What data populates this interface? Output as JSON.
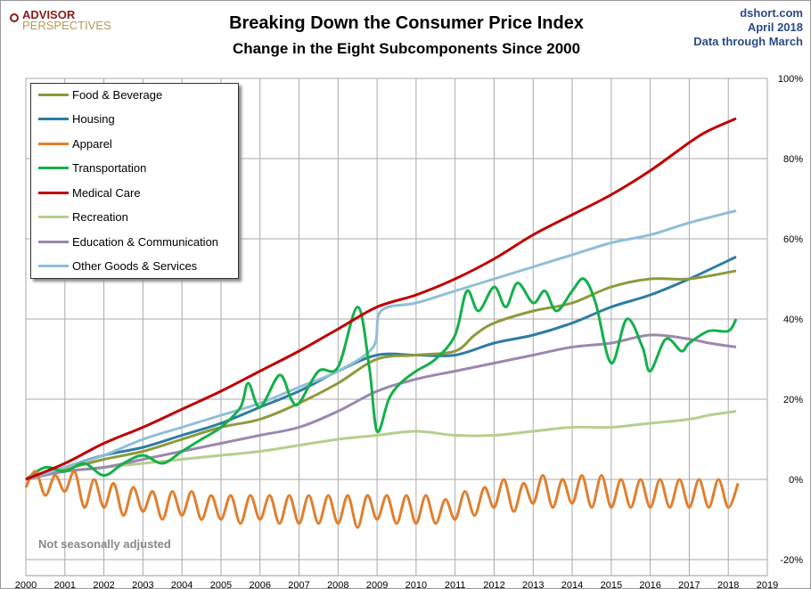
{
  "header": {
    "logo_line1": "ADVISOR",
    "logo_line2": "PERSPECTIVES",
    "title": "Breaking Down the Consumer Price Index",
    "subtitle": "Change in the Eight Subcomponents  Since 2000",
    "source": "dshort.com",
    "date": "April 2018",
    "data_through": "Data through March"
  },
  "note": "Not seasonally adjusted",
  "chart_data": {
    "type": "line",
    "title": "Breaking Down the Consumer Price Index",
    "subtitle": "Change in the Eight Subcomponents  Since 2000",
    "xlim": [
      2000,
      2019
    ],
    "ylim": [
      -24,
      100
    ],
    "grid": true,
    "legend_position": "top-left",
    "y_axis_side": "right",
    "x_ticks": [
      "2000",
      "2001",
      "2002",
      "2003",
      "2004",
      "2005",
      "2006",
      "2007",
      "2008",
      "2009",
      "2010",
      "2011",
      "2012",
      "2013",
      "2014",
      "2015",
      "2016",
      "2017",
      "2018",
      "2019"
    ],
    "y_ticks": [
      {
        "v": 100,
        "label": "100%"
      },
      {
        "v": 80,
        "label": "80%"
      },
      {
        "v": 60,
        "label": "60%"
      },
      {
        "v": 40,
        "label": "40%"
      },
      {
        "v": 20,
        "label": "20%"
      },
      {
        "v": 0,
        "label": "0%"
      },
      {
        "v": -20,
        "label": "-20%"
      }
    ],
    "series": [
      {
        "name": "Food & Beverage",
        "color": "#8c9a3a",
        "points": [
          [
            2000,
            0
          ],
          [
            2001,
            2.5
          ],
          [
            2002,
            5
          ],
          [
            2003,
            7
          ],
          [
            2004,
            10
          ],
          [
            2005,
            13
          ],
          [
            2006,
            15
          ],
          [
            2007,
            19
          ],
          [
            2008,
            24
          ],
          [
            2009,
            30
          ],
          [
            2010,
            31
          ],
          [
            2011,
            32
          ],
          [
            2011.5,
            36
          ],
          [
            2012,
            39
          ],
          [
            2013,
            42
          ],
          [
            2014,
            44
          ],
          [
            2015,
            48
          ],
          [
            2016,
            50
          ],
          [
            2017,
            50
          ],
          [
            2018.2,
            52
          ]
        ]
      },
      {
        "name": "Housing",
        "color": "#2e7ca3",
        "points": [
          [
            2000,
            0
          ],
          [
            2001,
            3
          ],
          [
            2002,
            6
          ],
          [
            2003,
            8
          ],
          [
            2004,
            11
          ],
          [
            2005,
            14
          ],
          [
            2006,
            18
          ],
          [
            2007,
            22
          ],
          [
            2008,
            27
          ],
          [
            2009,
            31
          ],
          [
            2010,
            31
          ],
          [
            2011,
            31
          ],
          [
            2012,
            34
          ],
          [
            2013,
            36
          ],
          [
            2014,
            39
          ],
          [
            2015,
            43
          ],
          [
            2016,
            46
          ],
          [
            2017,
            50
          ],
          [
            2018.2,
            55.5
          ]
        ]
      },
      {
        "name": "Apparel",
        "color": "#e07f2e",
        "quarterly_start": 2000,
        "values": [
          -2,
          2,
          -4,
          1,
          -3,
          2,
          -7,
          0,
          -7,
          -1,
          -9,
          -2,
          -8,
          -3,
          -10,
          -3,
          -9,
          -3,
          -10,
          -4,
          -10,
          -4,
          -11,
          -4,
          -10,
          -4,
          -11,
          -4,
          -11,
          -4,
          -11,
          -4,
          -11,
          -4,
          -12,
          -4,
          -10,
          -4,
          -11,
          -4,
          -11,
          -4,
          -11,
          -5,
          -10,
          -3,
          -9,
          -2,
          -7,
          0,
          -8,
          -1,
          -6,
          1,
          -7,
          0,
          -6,
          1,
          -7,
          1,
          -7,
          0,
          -7,
          0,
          -7,
          0,
          -7,
          0,
          -7,
          0,
          -7,
          0,
          -7,
          -1
        ]
      },
      {
        "name": "Transportation",
        "color": "#13b04a",
        "points": [
          [
            2000,
            0
          ],
          [
            2000.5,
            3
          ],
          [
            2001,
            2
          ],
          [
            2001.5,
            4
          ],
          [
            2002,
            1
          ],
          [
            2002.5,
            4
          ],
          [
            2003,
            6
          ],
          [
            2003.5,
            4
          ],
          [
            2004,
            7
          ],
          [
            2004.5,
            10
          ],
          [
            2005,
            13
          ],
          [
            2005.5,
            18
          ],
          [
            2005.7,
            24
          ],
          [
            2006,
            18
          ],
          [
            2006.5,
            26
          ],
          [
            2006.8,
            20
          ],
          [
            2007,
            19
          ],
          [
            2007.5,
            27
          ],
          [
            2008,
            28
          ],
          [
            2008.5,
            43
          ],
          [
            2008.8,
            28
          ],
          [
            2009,
            12
          ],
          [
            2009.3,
            20
          ],
          [
            2009.6,
            24
          ],
          [
            2010,
            27
          ],
          [
            2010.5,
            30
          ],
          [
            2011,
            36
          ],
          [
            2011.3,
            47
          ],
          [
            2011.6,
            42
          ],
          [
            2012,
            48
          ],
          [
            2012.3,
            43
          ],
          [
            2012.6,
            49
          ],
          [
            2013,
            44
          ],
          [
            2013.3,
            47
          ],
          [
            2013.6,
            42
          ],
          [
            2014,
            47
          ],
          [
            2014.3,
            50
          ],
          [
            2014.6,
            44
          ],
          [
            2015,
            29
          ],
          [
            2015.4,
            40
          ],
          [
            2015.8,
            33
          ],
          [
            2016,
            27
          ],
          [
            2016.4,
            35
          ],
          [
            2016.8,
            32
          ],
          [
            2017,
            34
          ],
          [
            2017.5,
            37
          ],
          [
            2018,
            37
          ],
          [
            2018.2,
            40
          ]
        ]
      },
      {
        "name": "Medical Care",
        "color": "#c00000",
        "points": [
          [
            2000,
            0
          ],
          [
            2001,
            4
          ],
          [
            2002,
            9
          ],
          [
            2003,
            13
          ],
          [
            2004,
            17.5
          ],
          [
            2005,
            22
          ],
          [
            2006,
            27
          ],
          [
            2007,
            32
          ],
          [
            2008,
            37.5
          ],
          [
            2009,
            43
          ],
          [
            2010,
            46
          ],
          [
            2011,
            50
          ],
          [
            2012,
            55
          ],
          [
            2013,
            61
          ],
          [
            2014,
            66
          ],
          [
            2015,
            71
          ],
          [
            2016,
            77
          ],
          [
            2017,
            84
          ],
          [
            2017.5,
            87
          ],
          [
            2018.2,
            90
          ]
        ]
      },
      {
        "name": "Recreation",
        "color": "#b5cf8c",
        "points": [
          [
            2000,
            0
          ],
          [
            2001,
            2
          ],
          [
            2002,
            3
          ],
          [
            2003,
            4
          ],
          [
            2004,
            5
          ],
          [
            2005,
            6
          ],
          [
            2006,
            7
          ],
          [
            2007,
            8.5
          ],
          [
            2008,
            10
          ],
          [
            2009,
            11
          ],
          [
            2010,
            12
          ],
          [
            2011,
            11
          ],
          [
            2012,
            11
          ],
          [
            2013,
            12
          ],
          [
            2014,
            13
          ],
          [
            2015,
            13
          ],
          [
            2016,
            14
          ],
          [
            2017,
            15
          ],
          [
            2017.5,
            16
          ],
          [
            2018.2,
            17
          ]
        ]
      },
      {
        "name": "Education & Communication",
        "color": "#9b87b0",
        "points": [
          [
            2000,
            0
          ],
          [
            2001,
            2
          ],
          [
            2002,
            3
          ],
          [
            2003,
            5
          ],
          [
            2004,
            7
          ],
          [
            2005,
            9
          ],
          [
            2006,
            11
          ],
          [
            2007,
            13
          ],
          [
            2008,
            17
          ],
          [
            2009,
            22
          ],
          [
            2010,
            25
          ],
          [
            2011,
            27
          ],
          [
            2012,
            29
          ],
          [
            2013,
            31
          ],
          [
            2014,
            33
          ],
          [
            2015,
            34
          ],
          [
            2016,
            36
          ],
          [
            2017,
            35
          ],
          [
            2017.5,
            34
          ],
          [
            2018.2,
            33
          ]
        ]
      },
      {
        "name": "Other Goods & Services",
        "color": "#8fbfd6",
        "points": [
          [
            2000,
            0
          ],
          [
            2001,
            3
          ],
          [
            2002,
            6
          ],
          [
            2003,
            10
          ],
          [
            2004,
            13
          ],
          [
            2005,
            16
          ],
          [
            2006,
            19
          ],
          [
            2007,
            23
          ],
          [
            2008,
            27
          ],
          [
            2008.9,
            33
          ],
          [
            2009.1,
            42
          ],
          [
            2010,
            44
          ],
          [
            2011,
            47
          ],
          [
            2012,
            50
          ],
          [
            2013,
            53
          ],
          [
            2014,
            56
          ],
          [
            2015,
            59
          ],
          [
            2016,
            61
          ],
          [
            2017,
            64
          ],
          [
            2018.2,
            67
          ]
        ]
      }
    ]
  }
}
